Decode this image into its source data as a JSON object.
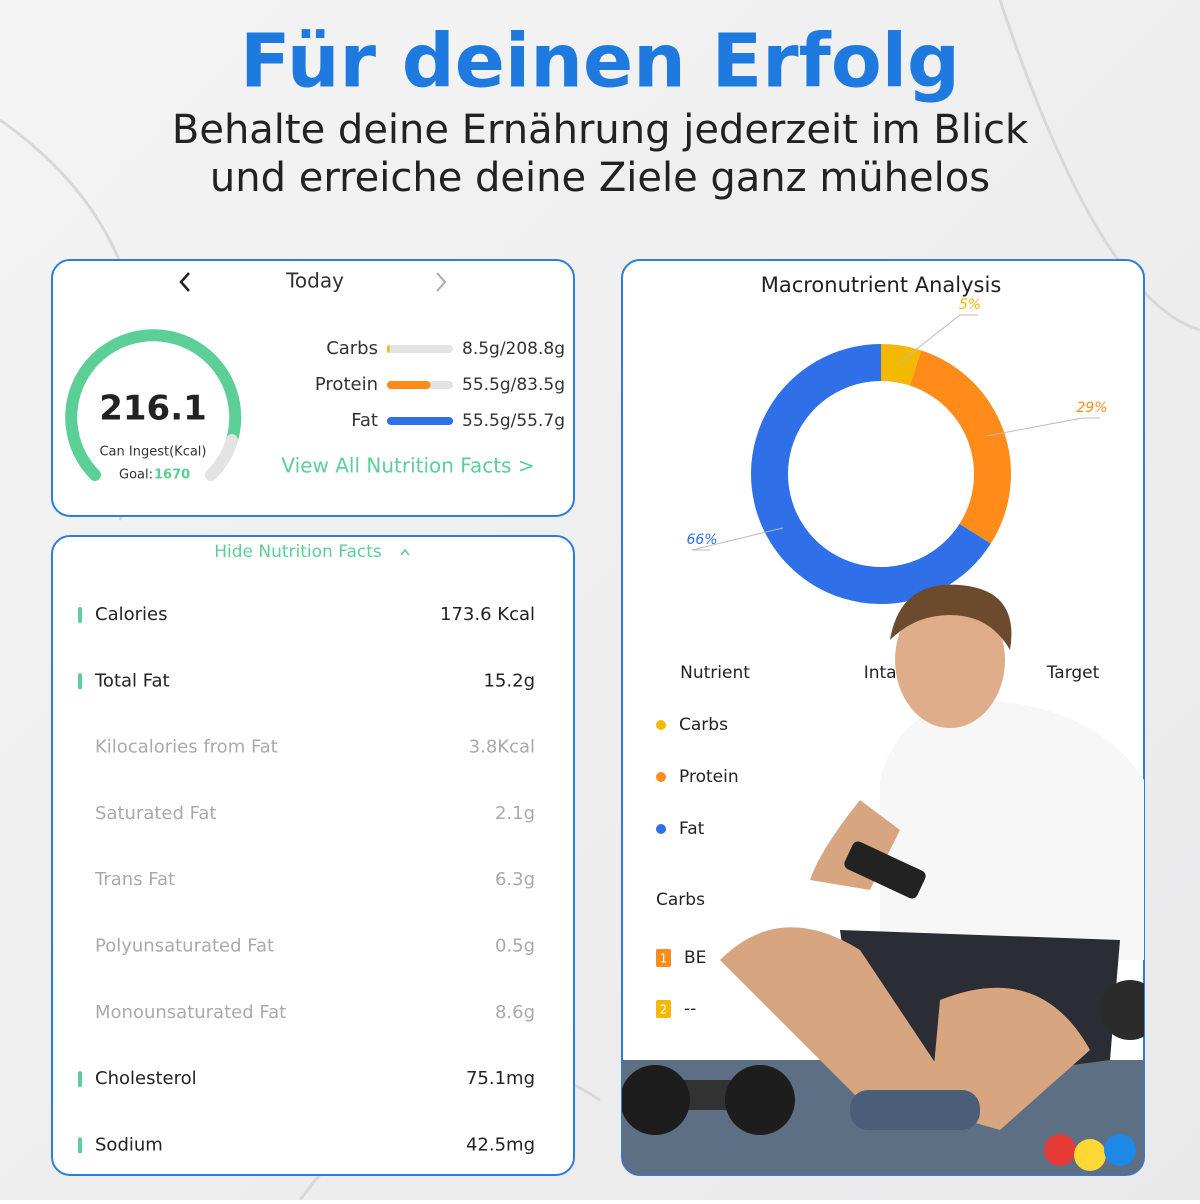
{
  "header": {
    "title": "Für deinen Erfolg",
    "subtitle": [
      "Behalte deine Ernährung jederzeit im Blick",
      "und erreiche deine Ziele ganz mühelos"
    ]
  },
  "summary": {
    "date": "Today",
    "calories_left": 216.1,
    "calories_label": "Can Ingest(Kcal)",
    "goal_label": "Goal:",
    "goal": 1670,
    "macros": [
      {
        "name": "Carbs",
        "amount": "8.5g/208.8g",
        "progress": 0.04,
        "color": "#f5b800"
      },
      {
        "name": "Protein",
        "amount": "55.5g/83.5g",
        "progress": 0.66,
        "color": "#ff8c1a"
      },
      {
        "name": "Fat",
        "amount": "55.5g/55.7g",
        "progress": 1,
        "color": "#2f6fe8"
      }
    ],
    "link": "View All Nutrition Facts >"
  },
  "nutrition": {
    "toggle": "Hide Nutrition Facts",
    "rows": [
      {
        "name": "Calories",
        "value": "173.6 Kcal",
        "main": true
      },
      {
        "name": "Total Fat",
        "value": "15.2g",
        "main": true
      },
      {
        "name": "Kilocalories from Fat",
        "value": "3.8Kcal",
        "main": false
      },
      {
        "name": "Saturated Fat",
        "value": "2.1g",
        "main": false
      },
      {
        "name": "Trans Fat",
        "value": "6.3g",
        "main": false
      },
      {
        "name": "Polyunsaturated Fat",
        "value": "0.5g",
        "main": false
      },
      {
        "name": "Monounsaturated Fat",
        "value": "8.6g",
        "main": false
      },
      {
        "name": "Cholesterol",
        "value": "75.1mg",
        "main": true
      },
      {
        "name": "Sodium",
        "value": "42.5mg",
        "main": true
      }
    ]
  },
  "analysis": {
    "title": "Macronutrient Analysis",
    "chart": {
      "type": "donut",
      "values": [
        5,
        29,
        66
      ],
      "value_labels": [
        "5%",
        "29%",
        "66%"
      ],
      "colors": [
        "#f5b800",
        "#ff8c1a",
        "#2f6fe8"
      ]
    },
    "table": {
      "headers": [
        "Nutrient",
        "Intake",
        "Target"
      ],
      "rows": [
        {
          "name": "Carbs",
          "color": "#f5b800"
        },
        {
          "name": "Protein",
          "color": "#ff8c1a"
        },
        {
          "name": "Fat",
          "color": "#2f6fe8"
        }
      ]
    },
    "section": "Carbs",
    "items": [
      {
        "rank": "1",
        "name": "BE",
        "color": "#ff8c1a"
      },
      {
        "rank": "2",
        "name": "--",
        "color": "#f5b800"
      }
    ]
  }
}
